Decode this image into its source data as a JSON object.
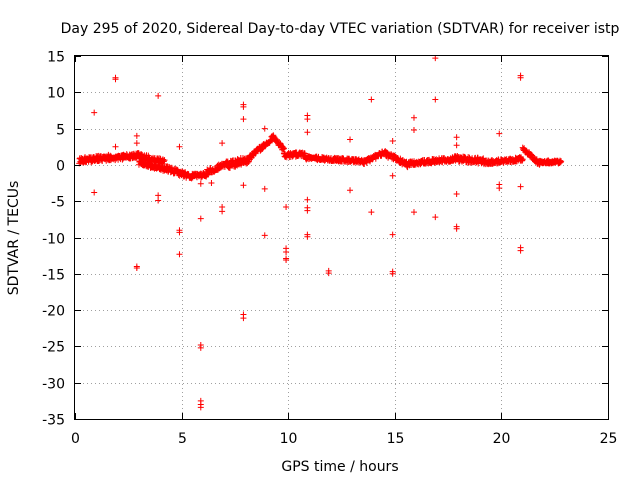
{
  "chart_data": {
    "type": "scatter",
    "title": "Day 295 of 2020, Sidereal Day-to-day VTEC variation (SDTVAR) for receiver istp",
    "xlabel": "GPS time / hours",
    "ylabel": "SDTVAR / TECUs",
    "xlim": [
      0,
      25
    ],
    "ylim": [
      -35,
      15
    ],
    "xticks": [
      0,
      5,
      10,
      15,
      20,
      25
    ],
    "yticks": [
      -35,
      -30,
      -25,
      -20,
      -15,
      -10,
      -5,
      0,
      5,
      10,
      15
    ],
    "grid": true,
    "marker": "plus",
    "color": "#ff0000",
    "band_segments": [
      {
        "x": [
          0.2,
          1.6
        ],
        "y": [
          0.6,
          1.0
        ],
        "jitter": 0.8
      },
      {
        "x": [
          1.6,
          3.0
        ],
        "y": [
          0.9,
          1.3
        ],
        "jitter": 0.7
      },
      {
        "x": [
          3.0,
          4.2
        ],
        "y": [
          1.2,
          0.4
        ],
        "jitter": 0.8
      },
      {
        "x": [
          3.0,
          4.2
        ],
        "y": [
          0.3,
          -0.6
        ],
        "jitter": 0.6
      },
      {
        "x": [
          4.2,
          5.4
        ],
        "y": [
          -0.4,
          -1.6
        ],
        "jitter": 0.8
      },
      {
        "x": [
          5.4,
          6.2
        ],
        "y": [
          -1.6,
          -1.4
        ],
        "jitter": 0.7
      },
      {
        "x": [
          6.2,
          7.2
        ],
        "y": [
          -1.0,
          0.2
        ],
        "jitter": 0.8
      },
      {
        "x": [
          7.2,
          8.2
        ],
        "y": [
          0.0,
          0.8
        ],
        "jitter": 1.0
      },
      {
        "x": [
          8.2,
          9.3
        ],
        "y": [
          1.0,
          3.8
        ],
        "jitter": 0.7
      },
      {
        "x": [
          9.3,
          9.8
        ],
        "y": [
          4.0,
          2.0
        ],
        "jitter": 0.6
      },
      {
        "x": [
          9.8,
          10.8
        ],
        "y": [
          1.3,
          1.5
        ],
        "jitter": 0.6
      },
      {
        "x": [
          10.8,
          13.5
        ],
        "y": [
          1.0,
          0.5
        ],
        "jitter": 0.5
      },
      {
        "x": [
          13.5,
          14.6
        ],
        "y": [
          0.3,
          1.8
        ],
        "jitter": 0.6
      },
      {
        "x": [
          14.6,
          15.6
        ],
        "y": [
          1.5,
          0.0
        ],
        "jitter": 0.8
      },
      {
        "x": [
          15.6,
          17.8
        ],
        "y": [
          0.2,
          0.8
        ],
        "jitter": 0.6
      },
      {
        "x": [
          17.8,
          19.2
        ],
        "y": [
          0.9,
          0.5
        ],
        "jitter": 0.8
      },
      {
        "x": [
          19.2,
          21.0
        ],
        "y": [
          0.3,
          0.8
        ],
        "jitter": 0.6
      },
      {
        "x": [
          21.0,
          21.8
        ],
        "y": [
          2.2,
          0.2
        ],
        "jitter": 0.6
      },
      {
        "x": [
          21.8,
          22.8
        ],
        "y": [
          0.4,
          0.4
        ],
        "jitter": 0.4
      }
    ],
    "outliers": [
      [
        0.9,
        7.2
      ],
      [
        0.9,
        -3.8
      ],
      [
        1.9,
        12.0
      ],
      [
        1.9,
        11.8
      ],
      [
        1.9,
        2.5
      ],
      [
        2.9,
        4.0
      ],
      [
        2.9,
        3.0
      ],
      [
        2.9,
        -14.2
      ],
      [
        2.9,
        -14.0
      ],
      [
        3.9,
        9.5
      ],
      [
        3.9,
        -4.2
      ],
      [
        3.9,
        -4.9
      ],
      [
        4.9,
        2.5
      ],
      [
        4.9,
        -9.0
      ],
      [
        4.9,
        -9.3
      ],
      [
        4.9,
        -12.3
      ],
      [
        5.9,
        -7.4
      ],
      [
        5.9,
        -24.8
      ],
      [
        5.9,
        -25.2
      ],
      [
        5.9,
        -32.5
      ],
      [
        5.9,
        -33.0
      ],
      [
        5.9,
        -33.4
      ],
      [
        5.9,
        -2.6
      ],
      [
        6.4,
        -2.5
      ],
      [
        6.9,
        3.0
      ],
      [
        6.9,
        -5.8
      ],
      [
        6.9,
        -6.4
      ],
      [
        7.9,
        8.3
      ],
      [
        7.9,
        8.0
      ],
      [
        7.9,
        6.3
      ],
      [
        7.9,
        -2.8
      ],
      [
        7.9,
        -20.6
      ],
      [
        7.9,
        -21.1
      ],
      [
        8.9,
        5.0
      ],
      [
        8.9,
        -3.3
      ],
      [
        8.9,
        -9.7
      ],
      [
        9.9,
        -5.8
      ],
      [
        9.9,
        -11.5
      ],
      [
        9.9,
        -12.0
      ],
      [
        9.9,
        -12.9
      ],
      [
        9.9,
        -13.1
      ],
      [
        10.9,
        6.8
      ],
      [
        10.9,
        6.3
      ],
      [
        10.9,
        4.5
      ],
      [
        10.9,
        -4.8
      ],
      [
        10.9,
        -5.9
      ],
      [
        10.9,
        -6.3
      ],
      [
        10.9,
        -9.6
      ],
      [
        10.9,
        -9.9
      ],
      [
        11.9,
        -14.6
      ],
      [
        11.9,
        -14.9
      ],
      [
        12.9,
        3.5
      ],
      [
        12.9,
        -3.5
      ],
      [
        13.9,
        9.0
      ],
      [
        13.9,
        -6.5
      ],
      [
        14.9,
        3.3
      ],
      [
        14.9,
        -1.5
      ],
      [
        14.9,
        -9.6
      ],
      [
        14.9,
        -14.7
      ],
      [
        14.9,
        -15.0
      ],
      [
        15.9,
        6.5
      ],
      [
        15.9,
        4.8
      ],
      [
        15.9,
        -6.5
      ],
      [
        16.9,
        14.7
      ],
      [
        16.9,
        9.0
      ],
      [
        16.9,
        -7.2
      ],
      [
        17.9,
        3.8
      ],
      [
        17.9,
        2.7
      ],
      [
        17.9,
        -4.0
      ],
      [
        17.9,
        -8.5
      ],
      [
        17.9,
        -8.8
      ],
      [
        18.5,
        1.0
      ],
      [
        18.9,
        0.5
      ],
      [
        19.9,
        4.3
      ],
      [
        19.9,
        -2.7
      ],
      [
        19.9,
        -3.2
      ],
      [
        20.9,
        12.3
      ],
      [
        20.9,
        12.0
      ],
      [
        20.9,
        -3.0
      ],
      [
        20.9,
        -11.4
      ],
      [
        20.9,
        -11.8
      ]
    ]
  }
}
